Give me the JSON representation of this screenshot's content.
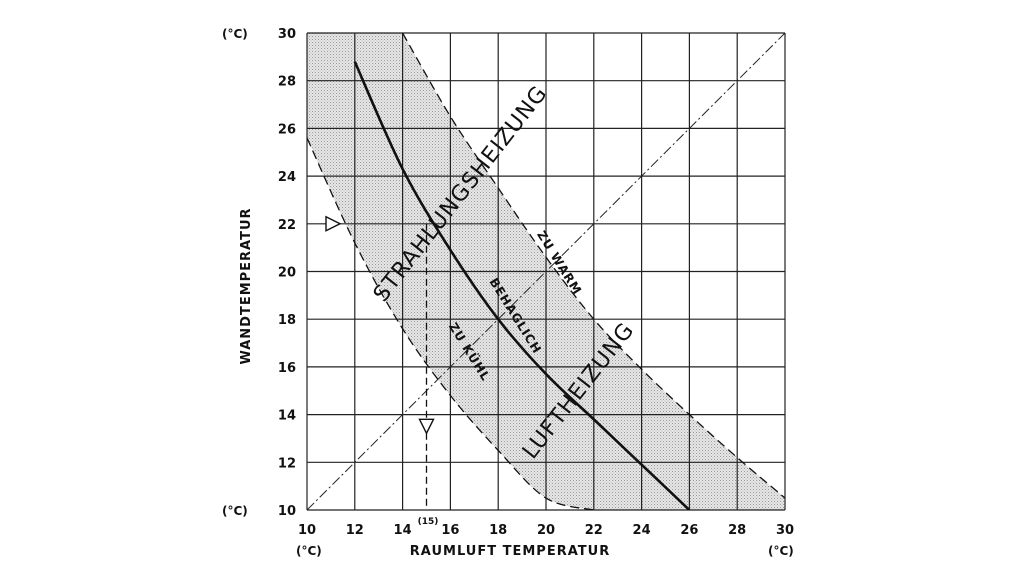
{
  "chart_data": {
    "type": "line",
    "xlabel": "RAUMLUFT TEMPERATUR",
    "ylabel": "WANDTEMPERATUR",
    "x_unit_left": "(°C)",
    "x_unit_right": "(°C)",
    "y_unit_top": "(°C)",
    "y_unit_bottom": "(°C)",
    "xlim": [
      10,
      30
    ],
    "ylim": [
      10,
      30
    ],
    "x_ticks": [
      10,
      12,
      14,
      16,
      18,
      20,
      22,
      24,
      26,
      28,
      30
    ],
    "y_ticks": [
      10,
      12,
      14,
      16,
      18,
      20,
      22,
      24,
      26,
      28,
      30
    ],
    "grid": true,
    "series": [
      {
        "name": "BEHAGLICH",
        "style": "solid",
        "x": [
          12,
          14,
          16,
          18,
          20,
          22,
          24,
          26
        ],
        "y": [
          28.8,
          24.3,
          20.9,
          18.0,
          15.7,
          13.8,
          11.9,
          10.0
        ]
      },
      {
        "name": "ZU WARM",
        "style": "dashed",
        "x": [
          14,
          16,
          18,
          20,
          22,
          24,
          26,
          28,
          30
        ],
        "y": [
          30.0,
          26.5,
          23.5,
          20.6,
          18.0,
          15.9,
          14.0,
          12.2,
          10.5
        ]
      },
      {
        "name": "ZU KÜHL",
        "style": "dashed",
        "x": [
          10,
          12,
          14,
          16,
          18,
          20,
          22
        ],
        "y": [
          25.6,
          21.2,
          17.6,
          14.8,
          12.5,
          10.5,
          10.0
        ]
      },
      {
        "name": "",
        "style": "dash-dot",
        "x": [
          10,
          30
        ],
        "y": [
          10,
          30
        ]
      }
    ],
    "annotations": [
      {
        "text": "STRAHLUNGSHEIZUNG"
      },
      {
        "text": "LUFTHEIZUNG"
      },
      {
        "text": "ZU WARM"
      },
      {
        "text": "BEHAGLICH"
      },
      {
        "text": "ZU KÜHL"
      },
      {
        "text": "(15)"
      }
    ],
    "example": {
      "wall_temperature": 22,
      "room_air_temperature": 15
    }
  }
}
